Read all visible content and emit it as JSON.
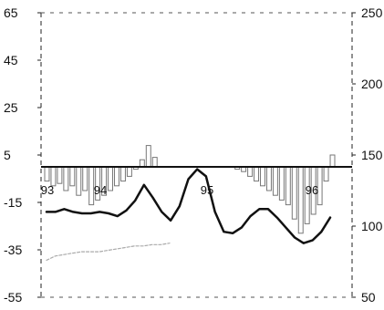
{
  "chart_data": {
    "type": "bar",
    "title": "",
    "xlabel": "",
    "ylabel": "",
    "grid": false,
    "legend": "none",
    "x_labels": [
      "93",
      "94",
      "95",
      "96"
    ],
    "left_axis": {
      "ylim": [
        -55,
        65
      ],
      "ticks": [
        "65",
        "45",
        "25",
        "5",
        "-15",
        "-35",
        "-55"
      ]
    },
    "right_axis": {
      "ylim": [
        50,
        250
      ],
      "ticks": [
        "250",
        "200",
        "150",
        "100",
        "50"
      ]
    },
    "series": [
      {
        "kind": "bar",
        "axis": "left",
        "color": "#777777",
        "values": [
          -6,
          -8,
          -7,
          -10,
          -8,
          -12,
          -10,
          -16,
          -14,
          -12,
          -10,
          -8,
          -6,
          -4,
          -1,
          3,
          9,
          4,
          0,
          0,
          0,
          0,
          0,
          0,
          0,
          0,
          0,
          0,
          0,
          0,
          -1,
          -2,
          -4,
          -6,
          -8,
          -10,
          -12,
          -14,
          -16,
          -22,
          -28,
          -24,
          -20,
          -16,
          -6,
          5
        ]
      },
      {
        "kind": "line",
        "axis": "right",
        "color": "#111111",
        "values": [
          110,
          110,
          112,
          110,
          109,
          109,
          110,
          109,
          107,
          111,
          118,
          129,
          120,
          110,
          104,
          114,
          133,
          140,
          135,
          110,
          96,
          95,
          99,
          107,
          112,
          112,
          106,
          99,
          92,
          88,
          90,
          96,
          106
        ]
      },
      {
        "kind": "line",
        "axis": "right",
        "color": "#aaaaaa",
        "values": [
          76,
          79,
          80,
          81,
          82,
          82,
          82,
          83,
          84,
          85,
          86,
          86,
          87,
          87,
          88
        ]
      }
    ]
  }
}
